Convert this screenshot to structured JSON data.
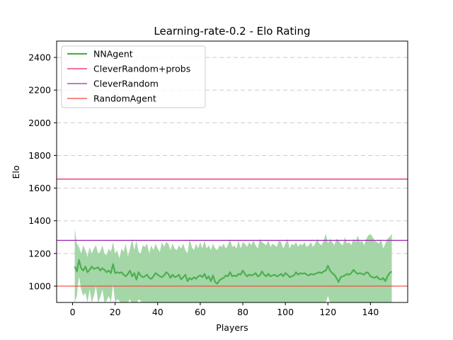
{
  "chart_data": {
    "type": "line",
    "title": "Learning-rate-0.2 - Elo Rating",
    "xlabel": "Players",
    "ylabel": "Elo",
    "xlim": [
      -7.5,
      157.5
    ],
    "ylim": [
      900,
      2500
    ],
    "xticks": [
      0,
      20,
      40,
      60,
      80,
      100,
      120,
      140
    ],
    "yticks": [
      1000,
      1200,
      1400,
      1600,
      1800,
      2000,
      2200,
      2400
    ],
    "grid": "y-dashed",
    "legend_position": "upper-left",
    "series": [
      {
        "name": "NNAgent",
        "kind": "line-with-band",
        "color": "#4caf50",
        "band_color": "#a5d6a7",
        "x": [
          1,
          2,
          3,
          4,
          5,
          6,
          7,
          8,
          9,
          10,
          11,
          12,
          13,
          14,
          15,
          16,
          17,
          18,
          19,
          20,
          21,
          22,
          23,
          24,
          25,
          26,
          27,
          28,
          29,
          30,
          31,
          32,
          33,
          34,
          35,
          36,
          37,
          38,
          39,
          40,
          41,
          42,
          43,
          44,
          45,
          46,
          47,
          48,
          49,
          50,
          51,
          52,
          53,
          54,
          55,
          56,
          57,
          58,
          59,
          60,
          61,
          62,
          63,
          64,
          65,
          66,
          67,
          68,
          69,
          70,
          71,
          72,
          73,
          74,
          75,
          76,
          77,
          78,
          79,
          80,
          81,
          82,
          83,
          84,
          85,
          86,
          87,
          88,
          89,
          90,
          91,
          92,
          93,
          94,
          95,
          96,
          97,
          98,
          99,
          100,
          101,
          102,
          103,
          104,
          105,
          106,
          107,
          108,
          109,
          110,
          111,
          112,
          113,
          114,
          115,
          116,
          117,
          118,
          119,
          120,
          121,
          122,
          123,
          124,
          125,
          126,
          127,
          128,
          129,
          130,
          131,
          132,
          133,
          134,
          135,
          136,
          137,
          138,
          139,
          140,
          141,
          142,
          143,
          144,
          145,
          146,
          147,
          148,
          149,
          150
        ],
        "y": [
          1120,
          1090,
          1160,
          1110,
          1095,
          1120,
          1085,
          1100,
          1120,
          1105,
          1110,
          1115,
          1095,
          1110,
          1100,
          1085,
          1095,
          1080,
          1135,
          1080,
          1085,
          1080,
          1085,
          1070,
          1060,
          1075,
          1095,
          1060,
          1080,
          1040,
          1085,
          1065,
          1055,
          1060,
          1070,
          1050,
          1045,
          1060,
          1080,
          1070,
          1060,
          1055,
          1065,
          1085,
          1075,
          1050,
          1070,
          1055,
          1060,
          1070,
          1040,
          1055,
          1070,
          1030,
          1050,
          1040,
          1055,
          1045,
          1060,
          1065,
          1055,
          1075,
          1045,
          1060,
          1030,
          1065,
          1025,
          1015,
          1035,
          1045,
          1050,
          1065,
          1060,
          1085,
          1060,
          1065,
          1060,
          1075,
          1070,
          1095,
          1075,
          1060,
          1070,
          1065,
          1070,
          1080,
          1060,
          1065,
          1090,
          1070,
          1060,
          1075,
          1060,
          1065,
          1070,
          1060,
          1065,
          1075,
          1060,
          1080,
          1070,
          1055,
          1060,
          1065,
          1085,
          1070,
          1080,
          1075,
          1080,
          1070,
          1065,
          1075,
          1070,
          1075,
          1080,
          1085,
          1080,
          1090,
          1095,
          1125,
          1095,
          1080,
          1070,
          1050,
          1025,
          1055,
          1060,
          1065,
          1075,
          1070,
          1080,
          1100,
          1085,
          1075,
          1080,
          1075,
          1070,
          1085,
          1080,
          1060,
          1055,
          1050,
          1060,
          1045,
          1040,
          1050,
          1030,
          1060,
          1080,
          1090
        ],
        "upper": [
          1350,
          1260,
          1240,
          1200,
          1250,
          1220,
          1180,
          1240,
          1200,
          1230,
          1250,
          1200,
          1210,
          1250,
          1200,
          1190,
          1230,
          1210,
          1270,
          1200,
          1220,
          1170,
          1230,
          1210,
          1260,
          1180,
          1230,
          1290,
          1220,
          1280,
          1210,
          1200,
          1250,
          1240,
          1260,
          1200,
          1250,
          1220,
          1260,
          1230,
          1210,
          1270,
          1240,
          1270,
          1260,
          1220,
          1260,
          1230,
          1220,
          1250,
          1230,
          1260,
          1220,
          1200,
          1290,
          1240,
          1220,
          1260,
          1230,
          1270,
          1230,
          1280,
          1230,
          1250,
          1220,
          1260,
          1230,
          1220,
          1250,
          1240,
          1260,
          1230,
          1250,
          1290,
          1240,
          1250,
          1230,
          1280,
          1230,
          1270,
          1260,
          1240,
          1270,
          1250,
          1280,
          1250,
          1230,
          1290,
          1270,
          1260,
          1250,
          1280,
          1240,
          1260,
          1250,
          1240,
          1280,
          1270,
          1230,
          1260,
          1290,
          1230,
          1260,
          1250,
          1270,
          1240,
          1260,
          1250,
          1270,
          1240,
          1250,
          1270,
          1240,
          1260,
          1290,
          1260,
          1250,
          1280,
          1320,
          1260,
          1290,
          1270,
          1250,
          1290,
          1280,
          1260,
          1250,
          1300,
          1260,
          1270,
          1250,
          1290,
          1270,
          1310,
          1270,
          1280,
          1250,
          1290,
          1310,
          1320,
          1300,
          1280,
          1270,
          1260,
          1290,
          1230,
          1260,
          1290,
          1300,
          1320
        ],
        "lower": [
          900,
          940,
          1060,
          980,
          940,
          960,
          900,
          980,
          900,
          940,
          1000,
          900,
          930,
          980,
          900,
          910,
          940,
          900,
          1010,
          900,
          920,
          910,
          880,
          900,
          900,
          900,
          920,
          880,
          900,
          880,
          920,
          910,
          870,
          900,
          900,
          880,
          880,
          900,
          900,
          880,
          880,
          870,
          890,
          900,
          900,
          880,
          900,
          880,
          890,
          880,
          870,
          880,
          890,
          850,
          870,
          860,
          870,
          860,
          880,
          880,
          860,
          880,
          860,
          870,
          840,
          870,
          840,
          820,
          840,
          850,
          860,
          860,
          860,
          880,
          860,
          870,
          860,
          870,
          860,
          900,
          880,
          860,
          880,
          860,
          870,
          880,
          860,
          860,
          900,
          870,
          860,
          880,
          860,
          870,
          870,
          860,
          870,
          880,
          860,
          880,
          870,
          850,
          860,
          870,
          890,
          870,
          880,
          870,
          880,
          870,
          860,
          880,
          870,
          880,
          880,
          890,
          880,
          890,
          900,
          940,
          900,
          880,
          870,
          850,
          820,
          850,
          860,
          870,
          880,
          870,
          880,
          900,
          890,
          870,
          880,
          870,
          870,
          880,
          880,
          860,
          850,
          850,
          860,
          840,
          830,
          840,
          820,
          850,
          870,
          880
        ]
      },
      {
        "name": "CleverRandom+probs",
        "kind": "hline",
        "value": 1655,
        "color": "#e91e63"
      },
      {
        "name": "CleverRandom",
        "kind": "hline",
        "value": 1280,
        "color": "#9c27b0"
      },
      {
        "name": "RandomAgent",
        "kind": "hline",
        "value": 1000,
        "color": "#f44336"
      }
    ]
  }
}
